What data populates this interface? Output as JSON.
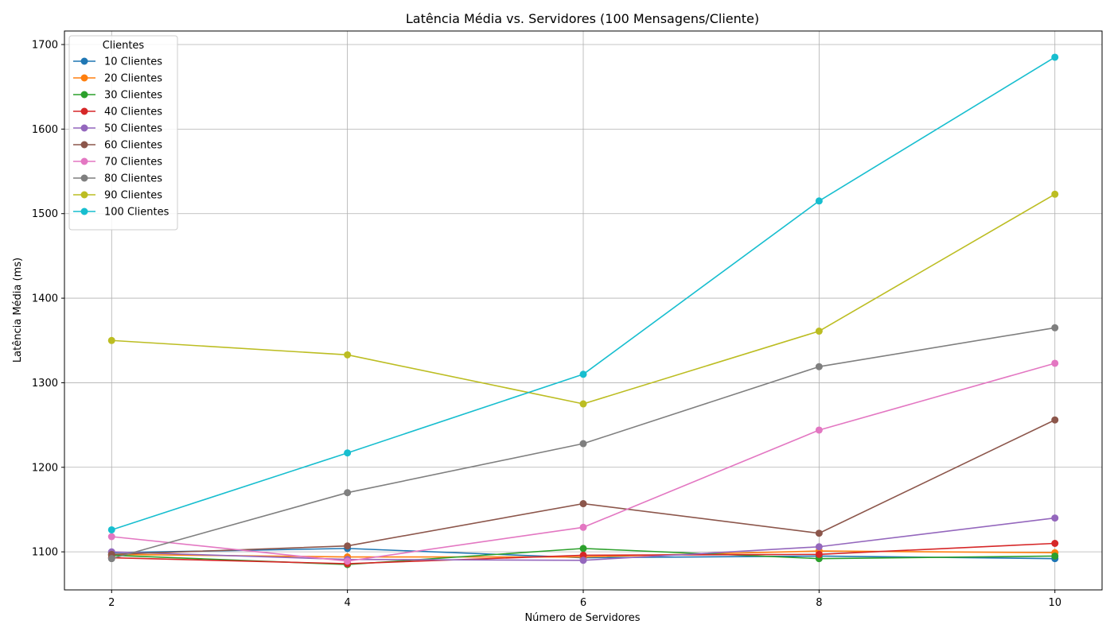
{
  "chart_data": {
    "type": "line",
    "title": "Latência Média vs. Servidores (100 Mensagens/Cliente)",
    "xlabel": "Número de Servidores",
    "ylabel": "Latência Média (ms)",
    "x": [
      2,
      4,
      6,
      8,
      10
    ],
    "xticks": [
      "2",
      "4",
      "6",
      "8",
      "10"
    ],
    "yticks": [
      "1100",
      "1200",
      "1300",
      "1400",
      "1500",
      "1600",
      "1700"
    ],
    "xlim": [
      1.6,
      10.4
    ],
    "ylim": [
      1055,
      1716
    ],
    "grid": true,
    "legend": {
      "title": "Clientes",
      "placement": "top-left"
    },
    "series": [
      {
        "name": "10 Clientes",
        "color": "#1f77b4",
        "values": [
          1099,
          1104,
          1093,
          1095,
          1092
        ]
      },
      {
        "name": "20 Clientes",
        "color": "#ff7f0e",
        "values": [
          1097,
          1094,
          1094,
          1101,
          1099
        ]
      },
      {
        "name": "30 Clientes",
        "color": "#2ca02c",
        "values": [
          1096,
          1085,
          1104,
          1092,
          1095
        ]
      },
      {
        "name": "40 Clientes",
        "color": "#d62728",
        "values": [
          1093,
          1086,
          1096,
          1097,
          1110
        ]
      },
      {
        "name": "50 Clientes",
        "color": "#9467bd",
        "values": [
          1100,
          1091,
          1090,
          1106,
          1140
        ]
      },
      {
        "name": "60 Clientes",
        "color": "#8c564b",
        "values": [
          1097,
          1107,
          1157,
          1122,
          1256
        ]
      },
      {
        "name": "70 Clientes",
        "color": "#e377c2",
        "values": [
          1118,
          1089,
          1129,
          1244,
          1323
        ]
      },
      {
        "name": "80 Clientes",
        "color": "#7f7f7f",
        "values": [
          1092,
          1170,
          1228,
          1319,
          1365
        ]
      },
      {
        "name": "90 Clientes",
        "color": "#bcbd22",
        "values": [
          1350,
          1333,
          1275,
          1361,
          1523
        ]
      },
      {
        "name": "100 Clientes",
        "color": "#17becf",
        "values": [
          1126,
          1217,
          1310,
          1515,
          1685
        ]
      }
    ]
  }
}
